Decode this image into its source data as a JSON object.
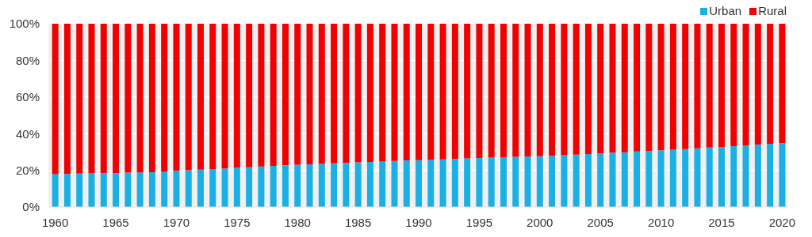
{
  "chart_data": {
    "type": "bar",
    "stacked": true,
    "categories": [
      "1960",
      null,
      null,
      null,
      null,
      "1965",
      null,
      null,
      null,
      null,
      "1970",
      null,
      null,
      null,
      null,
      "1975",
      null,
      null,
      null,
      null,
      "1980",
      null,
      null,
      null,
      null,
      "1985",
      null,
      null,
      null,
      null,
      "1990",
      null,
      null,
      null,
      null,
      "1995",
      null,
      null,
      null,
      null,
      "2000",
      null,
      null,
      null,
      null,
      "2005",
      null,
      null,
      null,
      null,
      "2010",
      null,
      null,
      null,
      null,
      "2015",
      null,
      null,
      null,
      null,
      "2020"
    ],
    "series": [
      {
        "name": "Urban",
        "color": "#1ab0e6",
        "values": [
          17.9,
          18.0,
          18.2,
          18.3,
          18.4,
          18.5,
          18.7,
          18.9,
          19.0,
          19.2,
          19.8,
          20.0,
          20.4,
          20.7,
          21.0,
          21.3,
          21.7,
          22.1,
          22.4,
          22.8,
          23.1,
          23.3,
          23.6,
          23.8,
          24.1,
          24.3,
          24.6,
          24.8,
          25.1,
          25.4,
          25.5,
          25.8,
          26.0,
          26.2,
          26.5,
          26.7,
          26.9,
          27.2,
          27.4,
          27.6,
          27.7,
          27.9,
          28.2,
          28.6,
          28.9,
          29.2,
          29.6,
          29.9,
          30.3,
          30.6,
          30.9,
          31.3,
          31.6,
          32.0,
          32.4,
          32.8,
          33.2,
          33.6,
          34.0,
          34.5,
          34.9
        ]
      },
      {
        "name": "Rural",
        "color": "#f20000",
        "values": [
          82.1,
          82.0,
          81.8,
          81.7,
          81.6,
          81.5,
          81.3,
          81.1,
          81.0,
          80.8,
          80.2,
          80.0,
          79.6,
          79.3,
          79.0,
          78.7,
          78.3,
          77.9,
          77.6,
          77.2,
          76.9,
          76.7,
          76.4,
          76.2,
          75.9,
          75.7,
          75.4,
          75.2,
          74.9,
          74.6,
          74.5,
          74.2,
          74.0,
          73.8,
          73.5,
          73.3,
          73.1,
          72.8,
          72.6,
          72.4,
          72.3,
          72.1,
          71.8,
          71.4,
          71.1,
          70.8,
          70.4,
          70.1,
          69.7,
          69.4,
          69.1,
          68.7,
          68.4,
          68.0,
          67.6,
          67.2,
          66.8,
          66.4,
          66.0,
          65.5,
          65.1
        ]
      }
    ],
    "ylim": [
      0,
      100
    ],
    "yticks": [
      {
        "value": 0,
        "label": "0%"
      },
      {
        "value": 20,
        "label": "20%"
      },
      {
        "value": 40,
        "label": "40%"
      },
      {
        "value": 60,
        "label": "60%"
      },
      {
        "value": 80,
        "label": "80%"
      },
      {
        "value": 100,
        "label": "100%"
      }
    ],
    "grid": "y",
    "legend": "top right"
  }
}
